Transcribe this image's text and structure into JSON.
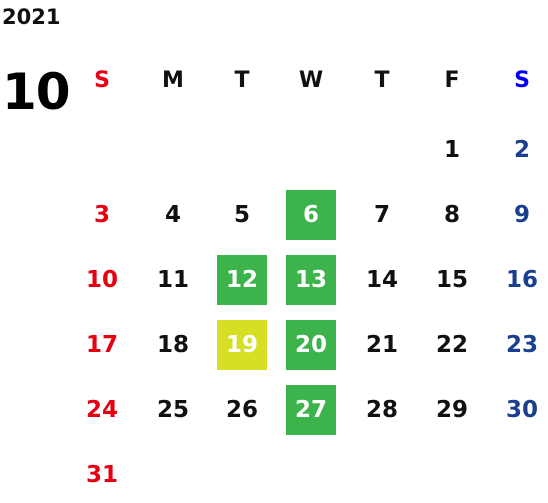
{
  "calendar": {
    "year": "2021",
    "month": "10",
    "weekdays": [
      "S",
      "M",
      "T",
      "W",
      "T",
      "F",
      "S"
    ],
    "rows": [
      [
        "",
        "",
        "",
        "",
        "",
        "1",
        "2"
      ],
      [
        "3",
        "4",
        "5",
        "6",
        "7",
        "8",
        "9"
      ],
      [
        "10",
        "11",
        "12",
        "13",
        "14",
        "15",
        "16"
      ],
      [
        "17",
        "18",
        "19",
        "20",
        "21",
        "22",
        "23"
      ],
      [
        "24",
        "25",
        "26",
        "27",
        "28",
        "29",
        "30"
      ],
      [
        "31",
        "",
        "",
        "",
        "",
        "",
        ""
      ]
    ],
    "highlights": {
      "green": [
        "6",
        "12",
        "13",
        "20",
        "27"
      ],
      "yellow": [
        "19"
      ]
    }
  },
  "colors": {
    "sunday": "#e60012",
    "saturday_header": "#0000ee",
    "saturday": "#1a3f8f",
    "green_highlight": "#3cb44b",
    "yellow_highlight": "#d6df23"
  }
}
